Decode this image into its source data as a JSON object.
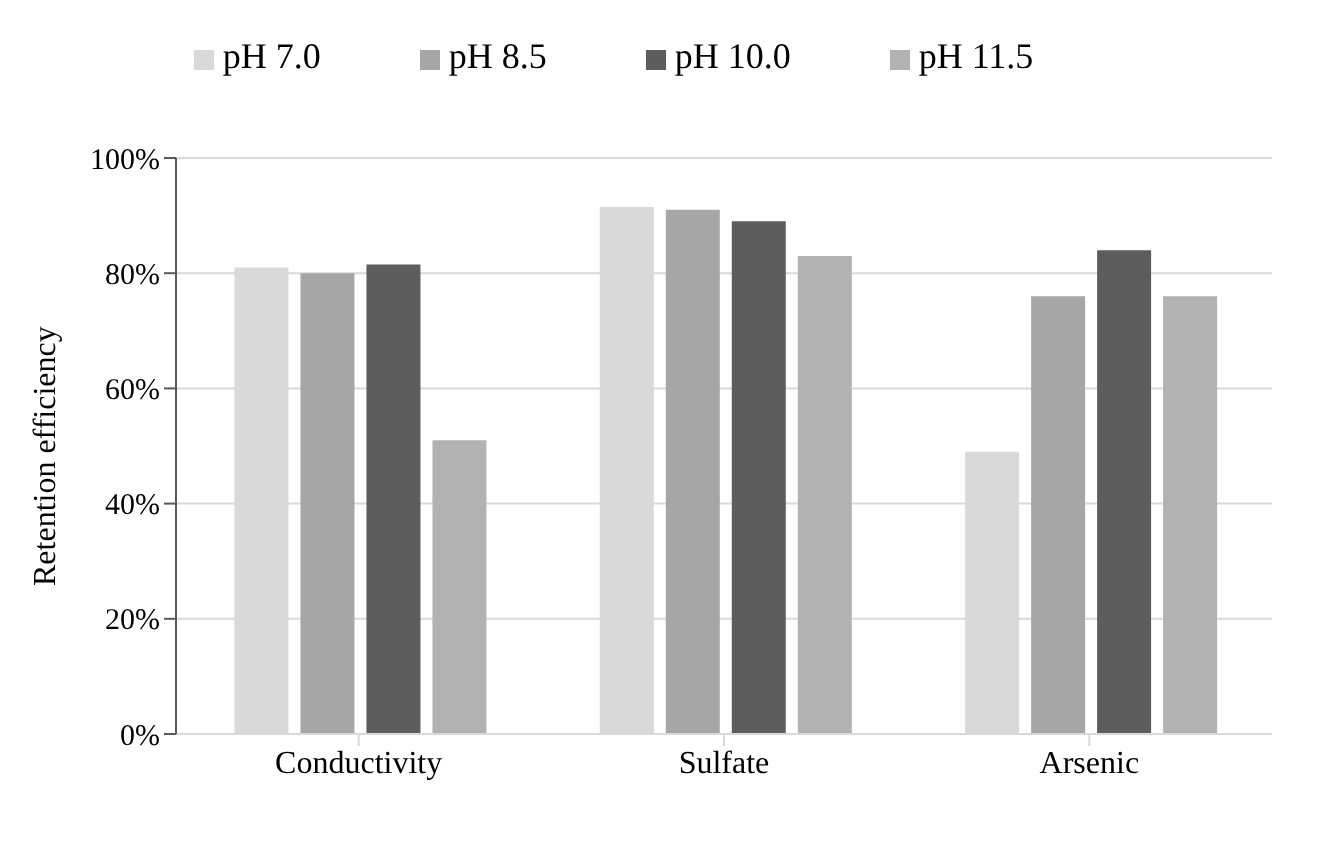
{
  "chart_data": {
    "type": "bar",
    "ylabel": "Retention efficiency",
    "categories": [
      "Conductivity",
      "Sulfate",
      "Arsenic"
    ],
    "series": [
      {
        "name": "pH 7.0",
        "color": "#d9d9d9",
        "values": [
          0.81,
          0.915,
          0.49
        ]
      },
      {
        "name": "pH 8.5",
        "color": "#a6a6a6",
        "values": [
          0.8,
          0.91,
          0.76
        ]
      },
      {
        "name": "pH 10.0",
        "color": "#5d5d5d",
        "values": [
          0.815,
          0.89,
          0.84
        ]
      },
      {
        "name": "pH 11.5",
        "color": "#b2b2b2",
        "values": [
          0.51,
          0.83,
          0.76
        ]
      }
    ],
    "ylim": [
      0,
      1
    ],
    "yticks": [
      {
        "value": 0,
        "label": "0%"
      },
      {
        "value": 0.2,
        "label": "20%"
      },
      {
        "value": 0.4,
        "label": "40%"
      },
      {
        "value": 0.6,
        "label": "60%"
      },
      {
        "value": 0.8,
        "label": "80%"
      },
      {
        "value": 1,
        "label": "100%"
      }
    ],
    "grid": "y",
    "legend": "top"
  }
}
